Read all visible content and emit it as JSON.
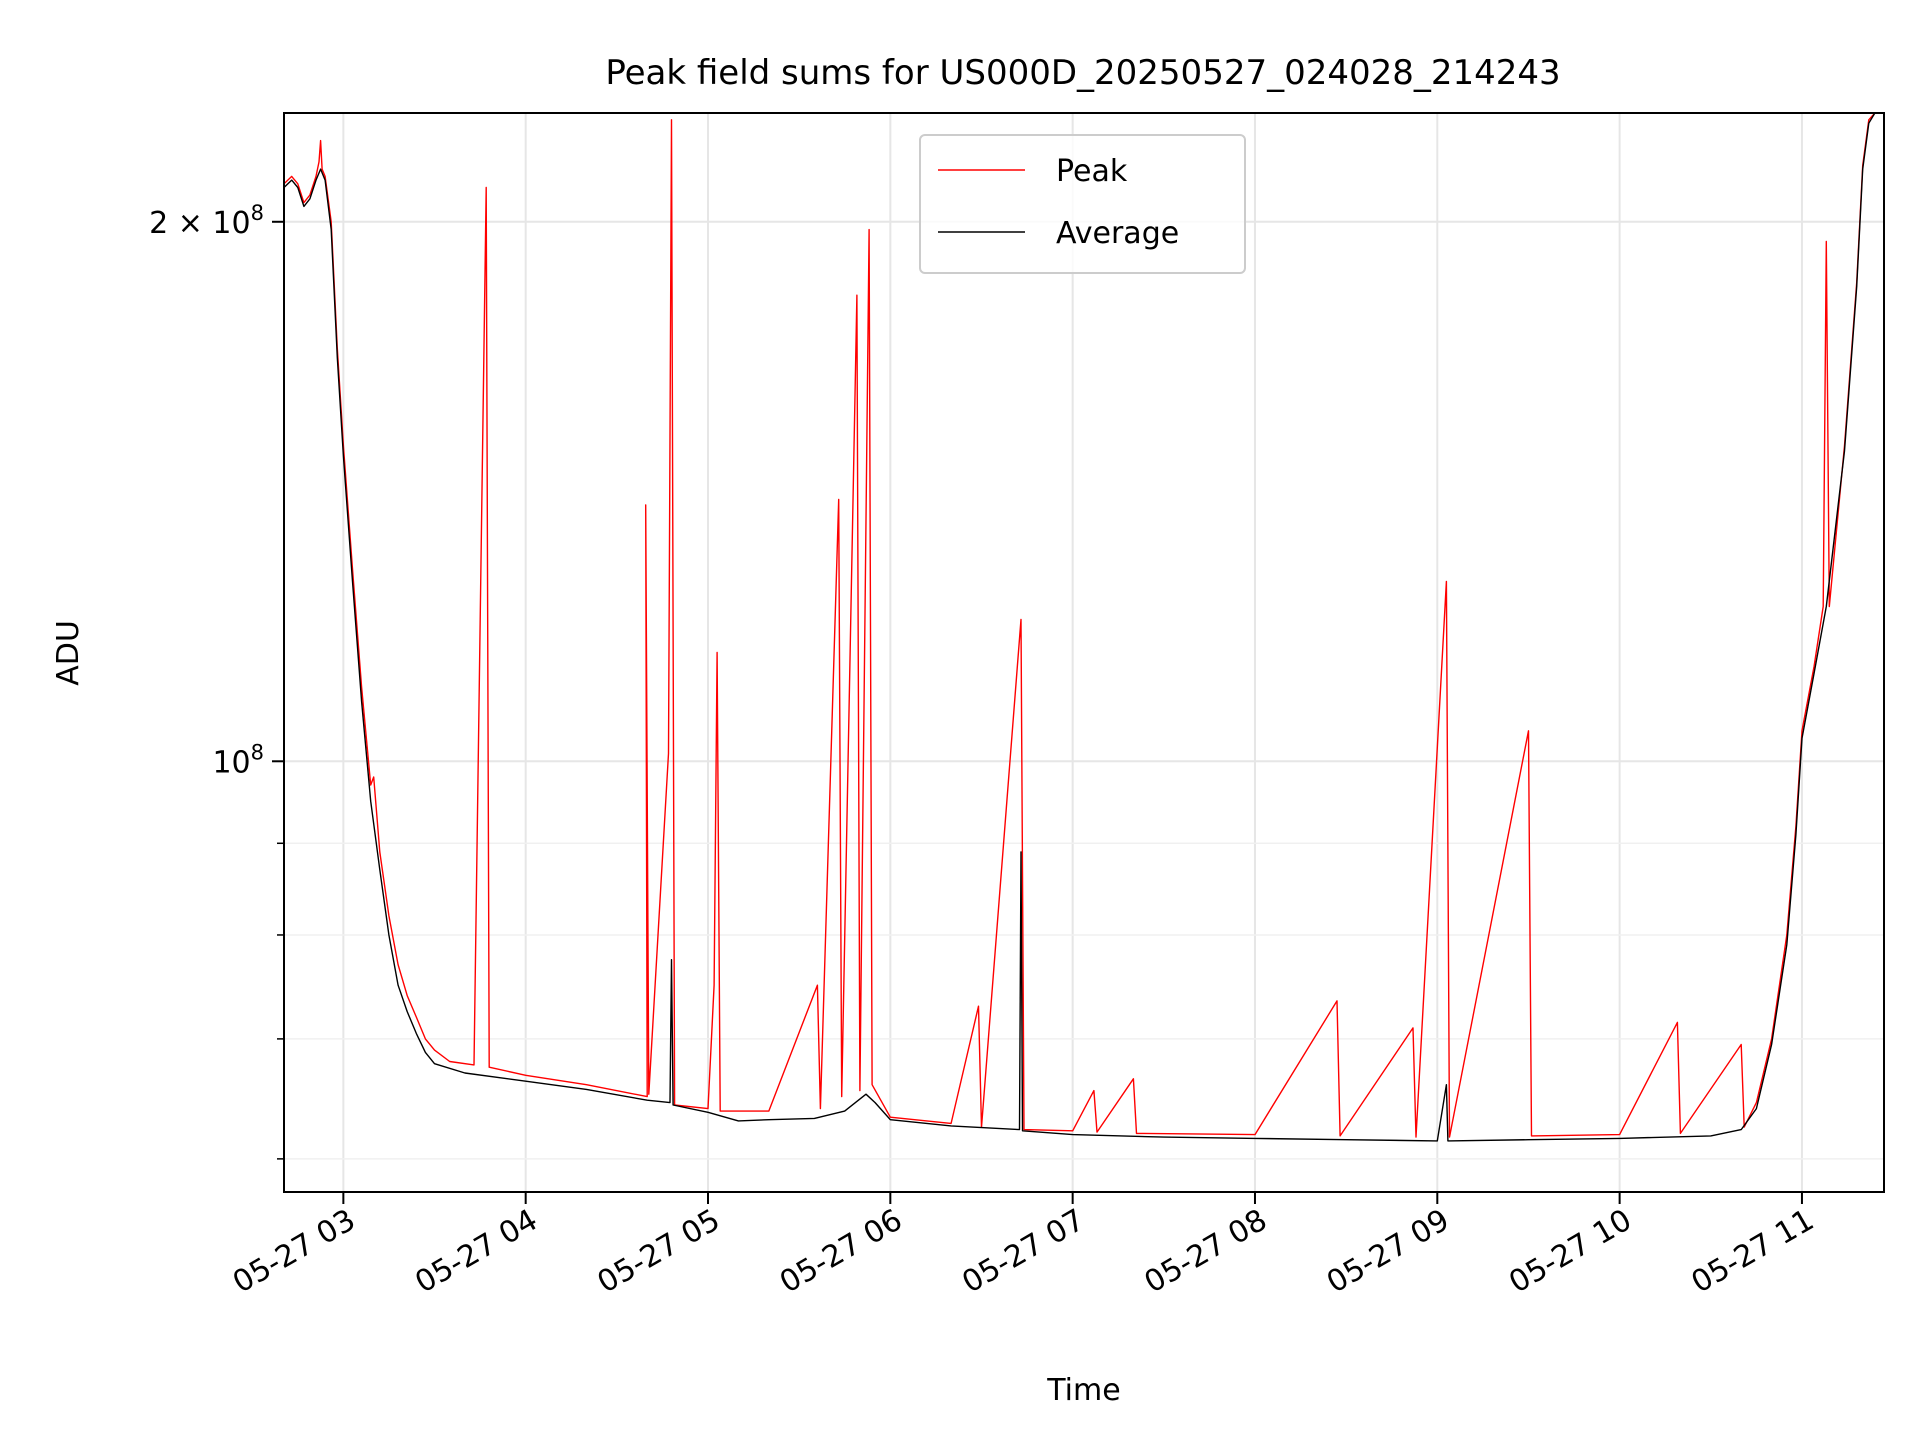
{
  "chart_data": {
    "type": "line",
    "title": "Peak field sums for US000D_20250527_024028_214243",
    "xlabel": "Time",
    "ylabel": "ADU",
    "xscale": "time",
    "yscale": "log",
    "grid": true,
    "legend_position": "top-center",
    "x_range": [
      "2025-05-27 02:40:28",
      "2025-05-27 11:27:00"
    ],
    "ylim": [
      57500000,
      230000000
    ],
    "x_ticks": [
      {
        "value": "2025-05-27 03:00",
        "label": "05-27 03"
      },
      {
        "value": "2025-05-27 04:00",
        "label": "05-27 04"
      },
      {
        "value": "2025-05-27 05:00",
        "label": "05-27 05"
      },
      {
        "value": "2025-05-27 06:00",
        "label": "05-27 06"
      },
      {
        "value": "2025-05-27 07:00",
        "label": "05-27 07"
      },
      {
        "value": "2025-05-27 08:00",
        "label": "05-27 08"
      },
      {
        "value": "2025-05-27 09:00",
        "label": "05-27 09"
      },
      {
        "value": "2025-05-27 10:00",
        "label": "05-27 10"
      },
      {
        "value": "2025-05-27 11:00",
        "label": "05-27 11"
      }
    ],
    "y_major_ticks": [
      {
        "value": 100000000,
        "base": "10",
        "exp": "8"
      },
      {
        "value": 200000000,
        "base": "2 × 10",
        "exp": "8"
      }
    ],
    "y_minor_ticks": [
      60000000,
      70000000,
      80000000,
      90000000
    ],
    "series": [
      {
        "name": "Peak",
        "color": "#ff0000",
        "points": [
          [
            "2025-05-27 02:40:28",
            210000000
          ],
          [
            "2025-05-27 02:43:00",
            212000000
          ],
          [
            "2025-05-27 02:45:00",
            210000000
          ],
          [
            "2025-05-27 02:47:00",
            205000000
          ],
          [
            "2025-05-27 02:49:00",
            207000000
          ],
          [
            "2025-05-27 02:51:00",
            212000000
          ],
          [
            "2025-05-27 02:52:00",
            216000000
          ],
          [
            "2025-05-27 02:52:30",
            222000000
          ],
          [
            "2025-05-27 02:53:00",
            214000000
          ],
          [
            "2025-05-27 02:54:00",
            212000000
          ],
          [
            "2025-05-27 02:56:00",
            200000000
          ],
          [
            "2025-05-27 02:58:00",
            170000000
          ],
          [
            "2025-05-27 03:00:00",
            150000000
          ],
          [
            "2025-05-27 03:03:00",
            128000000
          ],
          [
            "2025-05-27 03:06:00",
            110000000
          ],
          [
            "2025-05-27 03:09:00",
            97000000
          ],
          [
            "2025-05-27 03:10:00",
            98000000
          ],
          [
            "2025-05-27 03:12:00",
            89000000
          ],
          [
            "2025-05-27 03:15:00",
            82000000
          ],
          [
            "2025-05-27 03:18:00",
            77000000
          ],
          [
            "2025-05-27 03:21:00",
            74000000
          ],
          [
            "2025-05-27 03:24:00",
            72000000
          ],
          [
            "2025-05-27 03:27:00",
            70000000
          ],
          [
            "2025-05-27 03:30:00",
            69000000
          ],
          [
            "2025-05-27 03:35:00",
            68000000
          ],
          [
            "2025-05-27 03:43:00",
            67700000
          ],
          [
            "2025-05-27 03:47:00",
            209000000
          ],
          [
            "2025-05-27 03:48:00",
            67500000
          ],
          [
            "2025-05-27 04:00:00",
            66800000
          ],
          [
            "2025-05-27 04:20:00",
            66000000
          ],
          [
            "2025-05-27 04:40:00",
            65000000
          ],
          [
            "2025-05-27 04:39:30",
            139000000
          ],
          [
            "2025-05-27 04:40:30",
            65200000
          ],
          [
            "2025-05-27 04:47:00",
            101000000
          ],
          [
            "2025-05-27 04:48:00",
            228000000
          ],
          [
            "2025-05-27 04:49:00",
            64300000
          ],
          [
            "2025-05-27 05:00:00",
            64000000
          ],
          [
            "2025-05-27 05:02:00",
            75000000
          ],
          [
            "2025-05-27 05:03:00",
            115000000
          ],
          [
            "2025-05-27 05:04:00",
            63800000
          ],
          [
            "2025-05-27 05:20:00",
            63800000
          ],
          [
            "2025-05-27 05:36:00",
            75000000
          ],
          [
            "2025-05-27 05:37:00",
            64000000
          ],
          [
            "2025-05-27 05:43:00",
            140000000
          ],
          [
            "2025-05-27 05:44:00",
            65000000
          ],
          [
            "2025-05-27 05:49:00",
            182000000
          ],
          [
            "2025-05-27 05:50:00",
            65500000
          ],
          [
            "2025-05-27 05:53:00",
            198000000
          ],
          [
            "2025-05-27 05:54:00",
            66000000
          ],
          [
            "2025-05-27 06:00:00",
            63300000
          ],
          [
            "2025-05-27 06:20:00",
            62800000
          ],
          [
            "2025-05-27 06:29:00",
            73000000
          ],
          [
            "2025-05-27 06:30:00",
            62500000
          ],
          [
            "2025-05-27 06:43:00",
            120000000
          ],
          [
            "2025-05-27 06:44:00",
            62300000
          ],
          [
            "2025-05-27 07:00:00",
            62200000
          ],
          [
            "2025-05-27 07:07:00",
            65500000
          ],
          [
            "2025-05-27 07:08:00",
            62100000
          ],
          [
            "2025-05-27 07:20:00",
            66500000
          ],
          [
            "2025-05-27 07:21:00",
            62000000
          ],
          [
            "2025-05-27 08:00:00",
            61900000
          ],
          [
            "2025-05-27 08:27:00",
            73500000
          ],
          [
            "2025-05-27 08:28:00",
            61800000
          ],
          [
            "2025-05-27 08:52:00",
            71000000
          ],
          [
            "2025-05-27 08:53:00",
            61700000
          ],
          [
            "2025-05-27 09:03:00",
            126000000
          ],
          [
            "2025-05-27 09:04:00",
            61700000
          ],
          [
            "2025-05-27 09:30:00",
            104000000
          ],
          [
            "2025-05-27 09:31:00",
            61800000
          ],
          [
            "2025-05-27 10:00:00",
            61900000
          ],
          [
            "2025-05-27 10:19:00",
            71500000
          ],
          [
            "2025-05-27 10:20:00",
            62000000
          ],
          [
            "2025-05-27 10:40:00",
            69500000
          ],
          [
            "2025-05-27 10:41:00",
            62500000
          ],
          [
            "2025-05-27 10:45:00",
            64500000
          ],
          [
            "2025-05-27 10:50:00",
            70000000
          ],
          [
            "2025-05-27 10:55:00",
            80000000
          ],
          [
            "2025-05-27 10:58:00",
            92000000
          ],
          [
            "2025-05-27 11:00:00",
            104000000
          ],
          [
            "2025-05-27 11:04:00",
            113000000
          ],
          [
            "2025-05-27 11:07:00",
            122000000
          ],
          [
            "2025-05-27 11:08:00",
            195000000
          ],
          [
            "2025-05-27 11:09:00",
            122000000
          ],
          [
            "2025-05-27 11:14:00",
            150000000
          ],
          [
            "2025-05-27 11:18:00",
            185000000
          ],
          [
            "2025-05-27 11:20:00",
            215000000
          ],
          [
            "2025-05-27 11:22:00",
            228000000
          ],
          [
            "2025-05-27 11:24:00",
            230000000
          ],
          [
            "2025-05-27 11:27:00",
            230000000
          ]
        ]
      },
      {
        "name": "Average",
        "color": "#000000",
        "points": [
          [
            "2025-05-27 02:40:28",
            209000000
          ],
          [
            "2025-05-27 02:43:00",
            211000000
          ],
          [
            "2025-05-27 02:45:00",
            209000000
          ],
          [
            "2025-05-27 02:47:00",
            204000000
          ],
          [
            "2025-05-27 02:49:00",
            206000000
          ],
          [
            "2025-05-27 02:51:00",
            211000000
          ],
          [
            "2025-05-27 02:52:30",
            214000000
          ],
          [
            "2025-05-27 02:54:00",
            211000000
          ],
          [
            "2025-05-27 02:56:00",
            198000000
          ],
          [
            "2025-05-27 02:58:00",
            168000000
          ],
          [
            "2025-05-27 03:00:00",
            148000000
          ],
          [
            "2025-05-27 03:03:00",
            126000000
          ],
          [
            "2025-05-27 03:06:00",
            108000000
          ],
          [
            "2025-05-27 03:09:00",
            95000000
          ],
          [
            "2025-05-27 03:12:00",
            87000000
          ],
          [
            "2025-05-27 03:15:00",
            80000000
          ],
          [
            "2025-05-27 03:18:00",
            75000000
          ],
          [
            "2025-05-27 03:21:00",
            72500000
          ],
          [
            "2025-05-27 03:24:00",
            70500000
          ],
          [
            "2025-05-27 03:27:00",
            68800000
          ],
          [
            "2025-05-27 03:30:00",
            67800000
          ],
          [
            "2025-05-27 03:40:00",
            67000000
          ],
          [
            "2025-05-27 04:00:00",
            66300000
          ],
          [
            "2025-05-27 04:20:00",
            65600000
          ],
          [
            "2025-05-27 04:40:00",
            64700000
          ],
          [
            "2025-05-27 04:47:30",
            64500000
          ],
          [
            "2025-05-27 04:48:00",
            77500000
          ],
          [
            "2025-05-27 04:48:30",
            64300000
          ],
          [
            "2025-05-27 05:00:00",
            63700000
          ],
          [
            "2025-05-27 05:10:00",
            63000000
          ],
          [
            "2025-05-27 05:20:00",
            63100000
          ],
          [
            "2025-05-27 05:35:00",
            63200000
          ],
          [
            "2025-05-27 05:45:00",
            63800000
          ],
          [
            "2025-05-27 05:52:00",
            65200000
          ],
          [
            "2025-05-27 05:55:00",
            64500000
          ],
          [
            "2025-05-27 06:00:00",
            63100000
          ],
          [
            "2025-05-27 06:20:00",
            62600000
          ],
          [
            "2025-05-27 06:42:30",
            62300000
          ],
          [
            "2025-05-27 06:43:00",
            89000000
          ],
          [
            "2025-05-27 06:43:30",
            62200000
          ],
          [
            "2025-05-27 07:00:00",
            61900000
          ],
          [
            "2025-05-27 07:30:00",
            61700000
          ],
          [
            "2025-05-27 08:00:00",
            61600000
          ],
          [
            "2025-05-27 08:30:00",
            61500000
          ],
          [
            "2025-05-27 09:00:00",
            61400000
          ],
          [
            "2025-05-27 09:03:00",
            66000000
          ],
          [
            "2025-05-27 09:03:30",
            61400000
          ],
          [
            "2025-05-27 09:30:00",
            61500000
          ],
          [
            "2025-05-27 10:00:00",
            61600000
          ],
          [
            "2025-05-27 10:30:00",
            61800000
          ],
          [
            "2025-05-27 10:40:00",
            62300000
          ],
          [
            "2025-05-27 10:45:00",
            64000000
          ],
          [
            "2025-05-27 10:50:00",
            69500000
          ],
          [
            "2025-05-27 10:55:00",
            79000000
          ],
          [
            "2025-05-27 10:58:00",
            91000000
          ],
          [
            "2025-05-27 11:00:00",
            103000000
          ],
          [
            "2025-05-27 11:04:00",
            112000000
          ],
          [
            "2025-05-27 11:08:00",
            122000000
          ],
          [
            "2025-05-27 11:14:00",
            149000000
          ],
          [
            "2025-05-27 11:18:00",
            184000000
          ],
          [
            "2025-05-27 11:20:00",
            214000000
          ],
          [
            "2025-05-27 11:22:00",
            227000000
          ],
          [
            "2025-05-27 11:24:00",
            230000000
          ],
          [
            "2025-05-27 11:27:00",
            230000000
          ]
        ]
      }
    ]
  }
}
